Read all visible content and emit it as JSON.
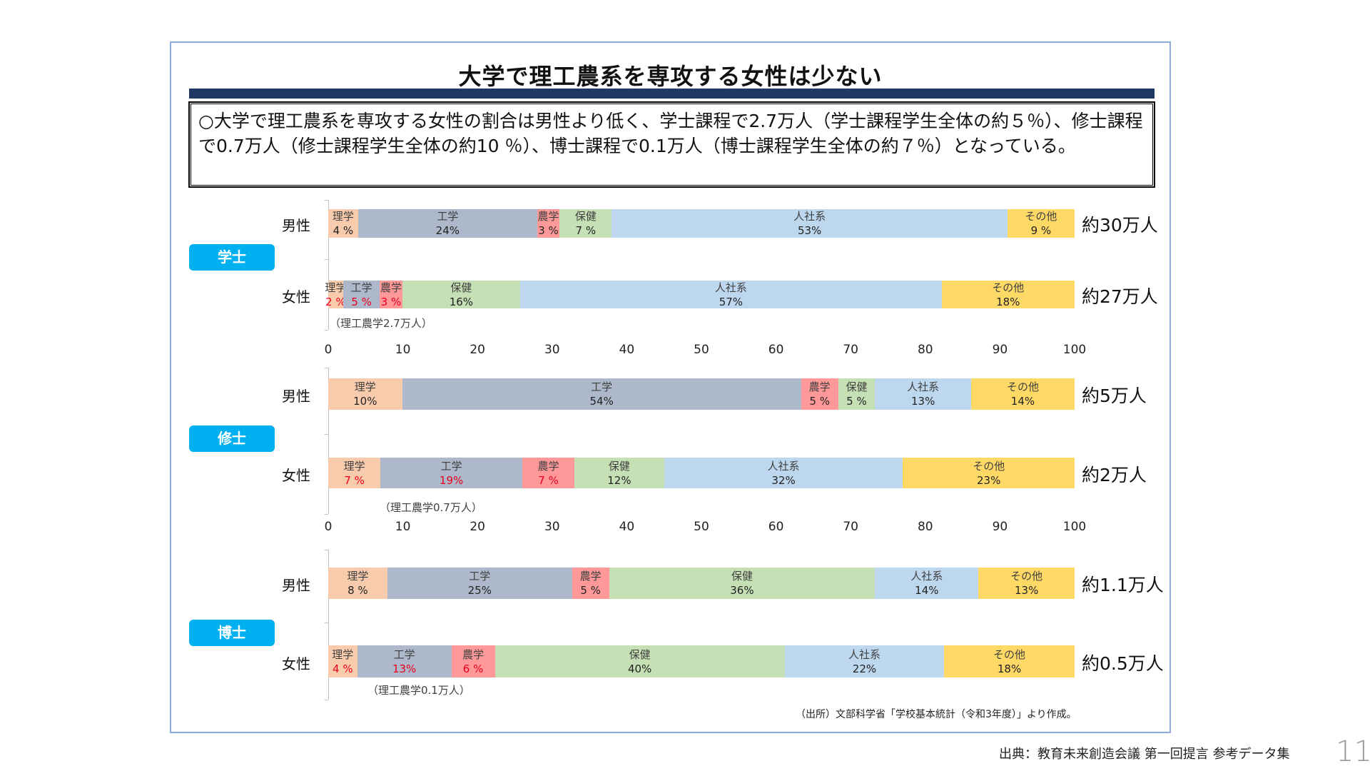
{
  "title": "大学で理工農系を専攻する女性は少ない",
  "summary": "○大学で理工農系を専攻する女性の割合は男性より低く、学士課程で2.7万人（学士課程学生全体の約５％）、修士課程で0.7万人（修士課程学生全体の約10 ％）、博士課程で0.1万人（博士課程学生全体の約７％）となっている。",
  "source": "（出所）文部科学省「学校基本統計（令和3年度）」より作成。",
  "footer": "出典：教育未来創造会議 第一回提言 参考データ集",
  "page_number": "11",
  "colors": {
    "理学": "#f8cbad",
    "工学": "#adb9ca",
    "農学": "#ff9999",
    "保健": "#c5e0b4",
    "人社系": "#bdd7ee",
    "その他": "#ffd966",
    "badge": "#00b0f0",
    "band": "#203864"
  },
  "chart_data": {
    "type": "bar",
    "orientation": "horizontal-stacked-100",
    "categories": [
      "理学",
      "工学",
      "農学",
      "保健",
      "人社系",
      "その他"
    ],
    "xlim": [
      0,
      100
    ],
    "xticks": [
      "0",
      "10",
      "20",
      "30",
      "40",
      "50",
      "60",
      "70",
      "80",
      "90",
      "100"
    ],
    "groups": [
      {
        "name": "学士",
        "note": "（理工農学2.7万人）",
        "rows": [
          {
            "label": "男性",
            "total": "約30万人",
            "values": [
              4,
              24,
              3,
              7,
              53,
              9
            ],
            "value_labels": [
              "4 %",
              "24%",
              "3 %",
              "7 %",
              "53%",
              "9 %"
            ],
            "red": [
              false,
              false,
              false,
              false,
              false,
              false
            ]
          },
          {
            "label": "女性",
            "total": "約27万人",
            "values": [
              2,
              5,
              3,
              16,
              57,
              18
            ],
            "value_labels": [
              "2 %",
              "5 %",
              "3 %",
              "16%",
              "57%",
              "18%"
            ],
            "red": [
              true,
              true,
              true,
              false,
              false,
              false
            ]
          }
        ]
      },
      {
        "name": "修士",
        "note": "（理工農学0.7万人）",
        "rows": [
          {
            "label": "男性",
            "total": "約5万人",
            "values": [
              10,
              54,
              5,
              5,
              13,
              14
            ],
            "value_labels": [
              "10%",
              "54%",
              "5 %",
              "5 %",
              "13%",
              "14%"
            ],
            "red": [
              false,
              false,
              false,
              false,
              false,
              false
            ]
          },
          {
            "label": "女性",
            "total": "約2万人",
            "values": [
              7,
              19,
              7,
              12,
              32,
              23
            ],
            "value_labels": [
              "7 %",
              "19%",
              "7 %",
              "12%",
              "32%",
              "23%"
            ],
            "red": [
              true,
              true,
              true,
              false,
              false,
              false
            ]
          }
        ]
      },
      {
        "name": "博士",
        "note": "（理工農学0.1万人）",
        "rows": [
          {
            "label": "男性",
            "total": "約1.1万人",
            "values": [
              8,
              25,
              5,
              36,
              14,
              13
            ],
            "value_labels": [
              "8 %",
              "25%",
              "5 %",
              "36%",
              "14%",
              "13%"
            ],
            "red": [
              false,
              false,
              false,
              false,
              false,
              false
            ]
          },
          {
            "label": "女性",
            "total": "約0.5万人",
            "values": [
              4,
              13,
              6,
              40,
              22,
              18
            ],
            "value_labels": [
              "4 %",
              "13%",
              "6 %",
              "40%",
              "22%",
              "18%"
            ],
            "red": [
              true,
              true,
              true,
              false,
              false,
              false
            ]
          }
        ]
      }
    ]
  }
}
